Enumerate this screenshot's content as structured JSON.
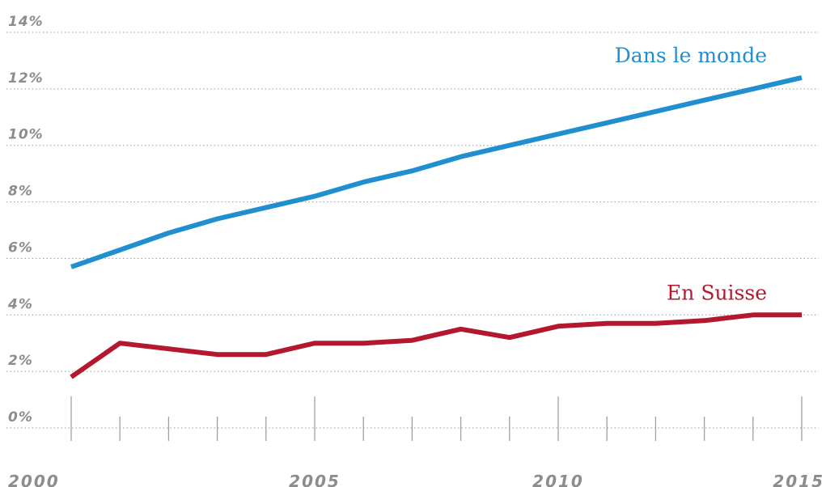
{
  "chart_data": {
    "type": "line",
    "x": [
      2000,
      2001,
      2002,
      2003,
      2004,
      2005,
      2006,
      2007,
      2008,
      2009,
      2010,
      2011,
      2012,
      2013,
      2014,
      2015
    ],
    "series": [
      {
        "name": "Dans le monde",
        "color": "#1f8fcf",
        "values": [
          5.7,
          6.3,
          6.9,
          7.4,
          7.8,
          8.2,
          8.7,
          9.1,
          9.6,
          10.0,
          10.4,
          10.8,
          11.2,
          11.6,
          12.0,
          12.4
        ]
      },
      {
        "name": "En Suisse",
        "color": "#b3182f",
        "values": [
          1.8,
          3.0,
          2.8,
          2.6,
          2.6,
          3.0,
          3.0,
          3.1,
          3.5,
          3.2,
          3.6,
          3.7,
          3.7,
          3.8,
          4.0,
          4.0
        ]
      }
    ],
    "ylim": [
      0,
      14
    ],
    "yticks": [
      "0%",
      "2%",
      "4%",
      "6%",
      "8%",
      "10%",
      "12%",
      "14%"
    ],
    "xticks": [
      "2000",
      "2005",
      "2010",
      "2015"
    ],
    "grid": true,
    "xlabel": "",
    "ylabel": ""
  }
}
